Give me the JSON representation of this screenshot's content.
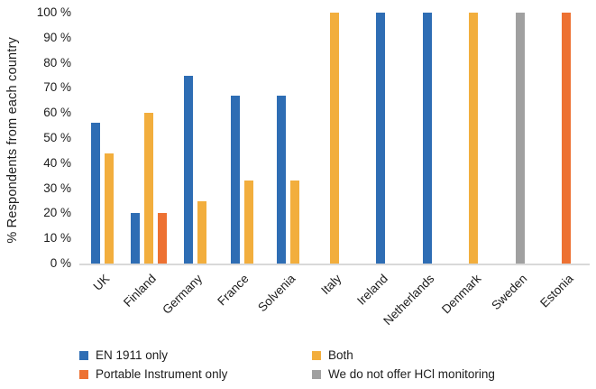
{
  "chart_data": {
    "type": "bar",
    "title": "",
    "xlabel": "",
    "ylabel": "% Respondents from each country",
    "ylim": [
      0,
      100
    ],
    "ytick_step": 10,
    "ytick_suffix": " %",
    "grid": false,
    "legend_position": "bottom",
    "categories": [
      "UK",
      "Finland",
      "Germany",
      "France",
      "Solvenia",
      "Italy",
      "Ireland",
      "Netherlands",
      "Denmark",
      "Sweden",
      "Estonia"
    ],
    "series": [
      {
        "name": "EN 1911 only",
        "color": "#2E6DB4",
        "values": [
          56,
          20,
          75,
          67,
          67,
          0,
          100,
          100,
          0,
          0,
          0
        ]
      },
      {
        "name": "Both",
        "color": "#F2AE3D",
        "values": [
          44,
          60,
          25,
          33,
          33,
          100,
          0,
          0,
          100,
          0,
          0
        ]
      },
      {
        "name": "Portable Instrument only",
        "color": "#ED7132",
        "values": [
          0,
          20,
          0,
          0,
          0,
          0,
          0,
          0,
          0,
          0,
          100
        ]
      },
      {
        "name": "We do not offer HCl monitoring",
        "color": "#A0A0A0",
        "values": [
          0,
          0,
          0,
          0,
          0,
          0,
          0,
          0,
          0,
          100,
          0
        ]
      }
    ],
    "axis_line_color": "#D9D9D9",
    "text_color": "#1C1C1C"
  }
}
